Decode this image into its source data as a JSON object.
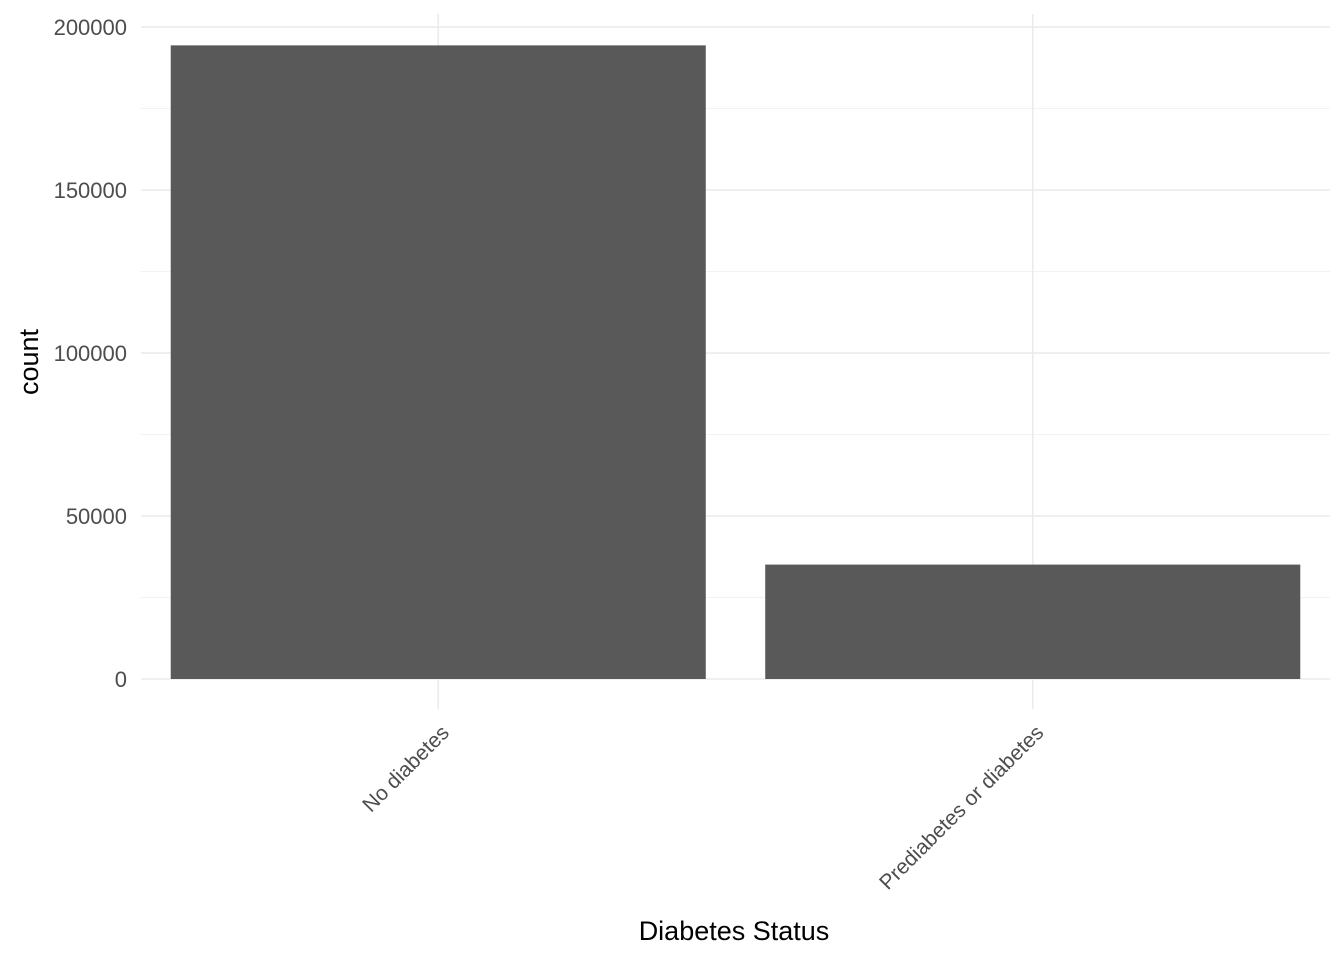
{
  "chart_data": {
    "type": "bar",
    "title": "",
    "xlabel": "Diabetes Status",
    "ylabel": "count",
    "categories": [
      "No diabetes",
      "Prediabetes or diabetes"
    ],
    "values": [
      194377,
      35097
    ],
    "ylim": [
      0,
      204000
    ],
    "yticks": [
      0,
      50000,
      100000,
      150000,
      200000
    ],
    "ytick_labels": [
      "0",
      "50000",
      "100000",
      "150000",
      "200000"
    ],
    "grid": true,
    "legend": "none",
    "bar_color": "#595959",
    "grid_color": "#ebebeb",
    "background_color": "#ffffff"
  }
}
